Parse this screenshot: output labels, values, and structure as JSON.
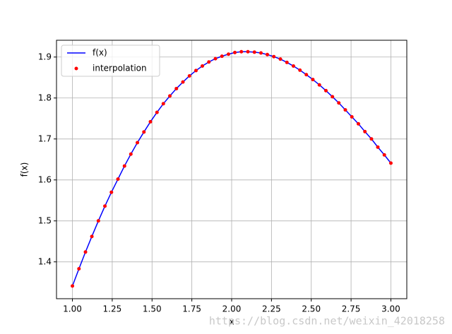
{
  "chart_data": {
    "type": "line",
    "xlabel": "x",
    "ylabel": "f(x)",
    "watermark": "https://blog.csdn.net/weixin_42018258",
    "x": [
      1,
      1.041,
      1.082,
      1.122,
      1.163,
      1.204,
      1.245,
      1.286,
      1.327,
      1.367,
      1.408,
      1.449,
      1.49,
      1.531,
      1.571,
      1.612,
      1.653,
      1.694,
      1.735,
      1.776,
      1.816,
      1.857,
      1.898,
      1.939,
      1.98,
      2.02,
      2.061,
      2.102,
      2.143,
      2.184,
      2.224,
      2.265,
      2.306,
      2.347,
      2.388,
      2.429,
      2.469,
      2.51,
      2.551,
      2.592,
      2.633,
      2.673,
      2.714,
      2.755,
      2.796,
      2.837,
      2.878,
      2.918,
      2.959,
      3
    ],
    "series": [
      {
        "name": "f(x)",
        "color": "#0000ff",
        "style": "line",
        "values": [
          1.341,
          1.383,
          1.424,
          1.462,
          1.5,
          1.536,
          1.57,
          1.602,
          1.634,
          1.663,
          1.691,
          1.717,
          1.742,
          1.765,
          1.786,
          1.805,
          1.823,
          1.839,
          1.854,
          1.867,
          1.878,
          1.888,
          1.896,
          1.902,
          1.907,
          1.911,
          1.913,
          1.913,
          1.912,
          1.91,
          1.906,
          1.901,
          1.895,
          1.887,
          1.878,
          1.868,
          1.857,
          1.845,
          1.832,
          1.818,
          1.803,
          1.788,
          1.771,
          1.754,
          1.737,
          1.718,
          1.7,
          1.68,
          1.661,
          1.641
        ]
      },
      {
        "name": "interpolation",
        "color": "#ff0000",
        "style": "points",
        "values": [
          1.341,
          1.383,
          1.424,
          1.462,
          1.5,
          1.536,
          1.57,
          1.602,
          1.634,
          1.663,
          1.691,
          1.717,
          1.742,
          1.765,
          1.786,
          1.805,
          1.823,
          1.839,
          1.854,
          1.867,
          1.878,
          1.888,
          1.896,
          1.902,
          1.907,
          1.911,
          1.913,
          1.913,
          1.912,
          1.91,
          1.906,
          1.901,
          1.895,
          1.887,
          1.878,
          1.868,
          1.857,
          1.845,
          1.832,
          1.818,
          1.803,
          1.788,
          1.771,
          1.754,
          1.737,
          1.718,
          1.7,
          1.68,
          1.661,
          1.641
        ]
      }
    ],
    "xlim": [
      0.9,
      3.1
    ],
    "ylim": [
      1.31,
      1.941
    ],
    "xticks": [
      {
        "value": 1,
        "label": "1.00"
      },
      {
        "value": 1.25,
        "label": "1.25"
      },
      {
        "value": 1.5,
        "label": "1.50"
      },
      {
        "value": 1.75,
        "label": "1.75"
      },
      {
        "value": 2,
        "label": "2.00"
      },
      {
        "value": 2.25,
        "label": "2.25"
      },
      {
        "value": 2.5,
        "label": "2.50"
      },
      {
        "value": 2.75,
        "label": "2.75"
      },
      {
        "value": 3,
        "label": "3.00"
      }
    ],
    "yticks": [
      1.4,
      1.5,
      1.6,
      1.7,
      1.8,
      1.9
    ],
    "grid": true,
    "legend": "upper-left"
  }
}
